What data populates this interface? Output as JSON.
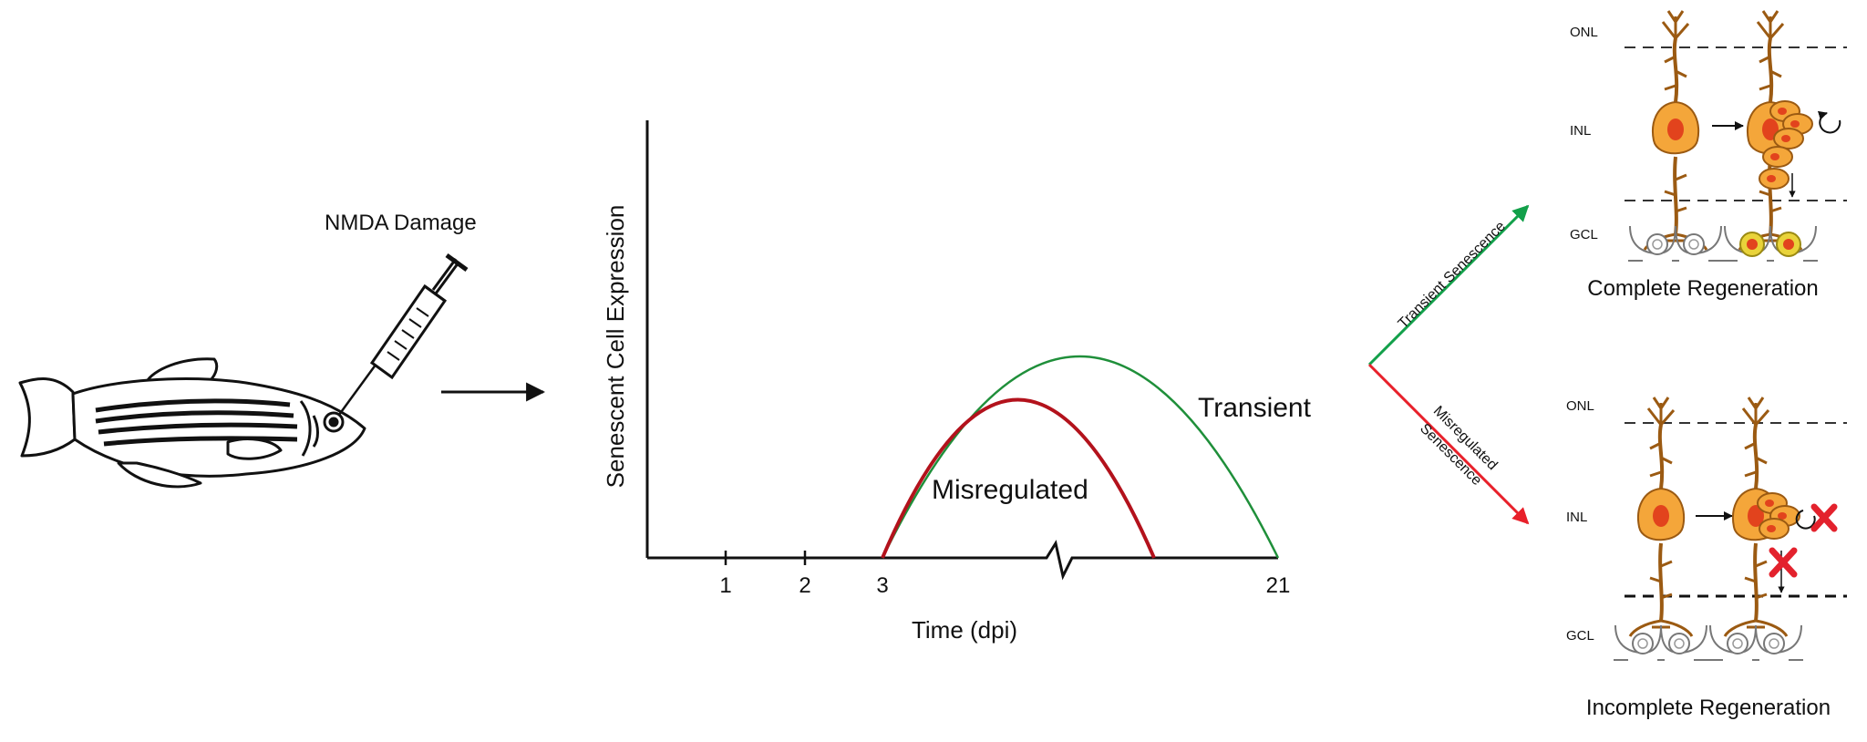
{
  "injection": {
    "label": "NMDA Damage"
  },
  "chart": {
    "ylabel": "Senescent Cell Expression",
    "xlabel": "Time (dpi)",
    "ticks": [
      "1",
      "2",
      "3",
      "21"
    ],
    "curve_transient_label": "Transient",
    "curve_misregulated_label": "Misregulated"
  },
  "chart_data": {
    "type": "line",
    "xlabel": "Time (dpi)",
    "ylabel": "Senescent Cell Expression",
    "x_ticks": [
      "1",
      "2",
      "3",
      "21"
    ],
    "axis_break": true,
    "series": [
      {
        "name": "Transient",
        "color": "#1f8f3a"
      },
      {
        "name": "Misregulated",
        "color": "#b3121c"
      }
    ]
  },
  "branches": {
    "top_label": "Transient Senescence",
    "bottom_label_line1": "Misregulated",
    "bottom_label_line2": "Senescence",
    "top_color": "#12a04a",
    "bottom_color": "#e8202a"
  },
  "panel_top": {
    "onl": "ONL",
    "inl": "INL",
    "gcl": "GCL",
    "caption": "Complete Regeneration"
  },
  "panel_bottom": {
    "onl": "ONL",
    "inl": "INL",
    "gcl": "GCL",
    "caption": "Incomplete Regeneration"
  },
  "colors": {
    "cell_fill": "#f4a63a",
    "cell_stroke": "#9b5a12",
    "nucleus": "#e2431d",
    "new_neuron": "#e9d33a",
    "cross": "#e3222d"
  }
}
